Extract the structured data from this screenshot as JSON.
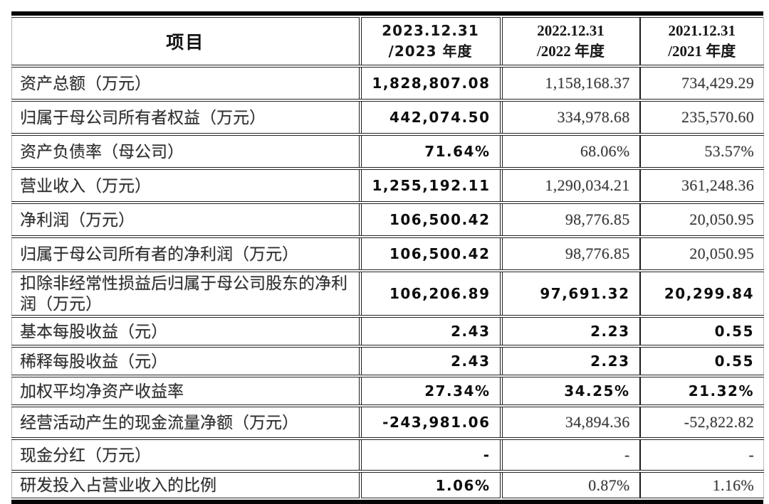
{
  "doc": {
    "header": {
      "item_column_label": "项目",
      "periods": [
        {
          "date": "2023.12.31",
          "year": "/2023 年度"
        },
        {
          "date": "2022.12.31",
          "year": "/2022 年度"
        },
        {
          "date": "2021.12.31",
          "year": "/2021 年度"
        }
      ]
    },
    "rows": [
      {
        "label": "资产总额（万元）",
        "v2023": "1,828,807.08",
        "v2022": "1,158,168.37",
        "v2021": "734,429.29"
      },
      {
        "label": "归属于母公司所有者权益（万元）",
        "v2023": "442,074.50",
        "v2022": "334,978.68",
        "v2021": "235,570.60"
      },
      {
        "label": "资产负债率（母公司）",
        "v2023": "71.64%",
        "v2022": "68.06%",
        "v2021": "53.57%"
      },
      {
        "label": "营业收入（万元）",
        "v2023": "1,255,192.11",
        "v2022": "1,290,034.21",
        "v2021": "361,248.36"
      },
      {
        "label": "净利润（万元）",
        "v2023": "106,500.42",
        "v2022": "98,776.85",
        "v2021": "20,050.95"
      },
      {
        "label": "归属于母公司所有者的净利润（万元）",
        "v2023": "106,500.42",
        "v2022": "98,776.85",
        "v2021": "20,050.95"
      },
      {
        "label": "扣除非经常性损益后归属于母公司股东的净利润（万元）",
        "v2023": "106,206.89",
        "v2022": "97,691.32",
        "v2021": "20,299.84"
      },
      {
        "label": "基本每股收益（元）",
        "v2023": "2.43",
        "v2022": "2.23",
        "v2021": "0.55"
      },
      {
        "label": "稀释每股收益（元）",
        "v2023": "2.43",
        "v2022": "2.23",
        "v2021": "0.55"
      },
      {
        "label": "加权平均净资产收益率",
        "v2023": "27.34%",
        "v2022": "34.25%",
        "v2021": "21.32%"
      },
      {
        "label": "经营活动产生的现金流量净额（万元）",
        "v2023": "-243,981.06",
        "v2022": "34,894.36",
        "v2021": "-52,822.82"
      },
      {
        "label": "现金分红（万元）",
        "v2023": "-",
        "v2022": "-",
        "v2021": "-"
      },
      {
        "label": "研发投入占营业收入的比例",
        "v2023": "1.06%",
        "v2022": "0.87%",
        "v2021": "1.16%"
      }
    ],
    "colors": {
      "background": "#ffffff",
      "text_bold": "#0d0d0d",
      "text_serif": "#373737",
      "border": "#1b1b1b",
      "thick_bar": "#060606"
    }
  }
}
